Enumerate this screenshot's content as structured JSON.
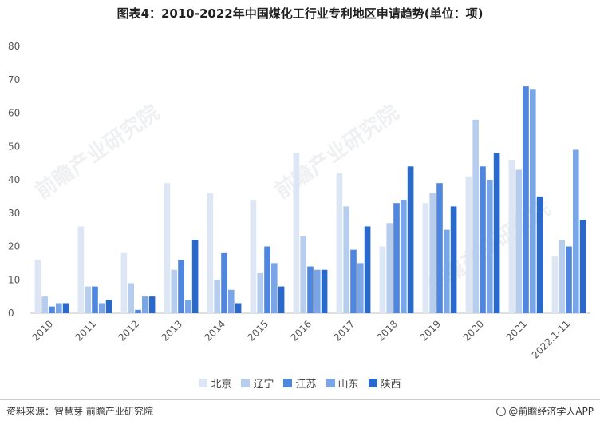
{
  "title": "图表4：2010-2022年中国煤化工行业专利地区申请趋势(单位：项)",
  "source": "资料来源：智慧芽 前瞻产业研究院",
  "brand": "@前瞻经济学人APP",
  "watermark": "前瞻产业研究院",
  "chart_data": {
    "type": "bar",
    "categories": [
      "2010",
      "2011",
      "2012",
      "2013",
      "2014",
      "2015",
      "2016",
      "2017",
      "2018",
      "2019",
      "2020",
      "2021",
      "2022.1-11"
    ],
    "ylim": [
      0,
      80
    ],
    "yticks": [
      0,
      10,
      20,
      30,
      40,
      50,
      60,
      70,
      80
    ],
    "grid": false,
    "legend_position": "bottom",
    "series": [
      {
        "name": "北京",
        "color": "#dce6f4",
        "values": [
          16,
          26,
          18,
          39,
          36,
          34,
          48,
          42,
          20,
          33,
          41,
          46,
          17
        ]
      },
      {
        "name": "辽宁",
        "color": "#b7cdee",
        "values": [
          5,
          8,
          9,
          13,
          10,
          12,
          23,
          32,
          27,
          36,
          58,
          43,
          22
        ]
      },
      {
        "name": "江苏",
        "color": "#4f86e0",
        "values": [
          2,
          8,
          1,
          16,
          18,
          20,
          14,
          19,
          33,
          39,
          44,
          68,
          20
        ]
      },
      {
        "name": "山东",
        "color": "#7aa5e6",
        "values": [
          3,
          3,
          5,
          4,
          7,
          15,
          13,
          15,
          34,
          25,
          40,
          67,
          49
        ]
      },
      {
        "name": "陕西",
        "color": "#2a69cc",
        "values": [
          3,
          4,
          5,
          22,
          3,
          8,
          13,
          26,
          44,
          32,
          48,
          35,
          28
        ]
      }
    ]
  }
}
